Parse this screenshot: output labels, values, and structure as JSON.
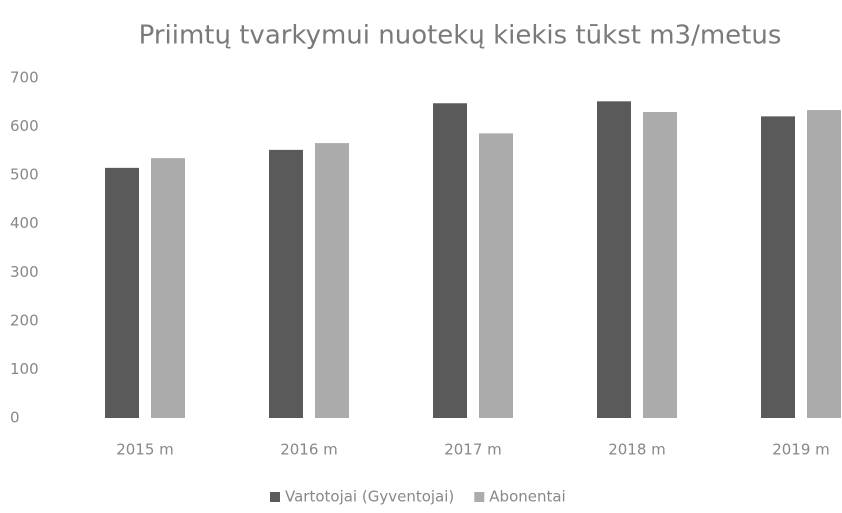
{
  "chart_data": {
    "type": "bar",
    "title": "Priimtų tvarkymui nuotekų kiekis tūkst m3/metus",
    "categories": [
      "2015 m",
      "2016 m",
      "2017 m",
      "2018 m",
      "2019 m"
    ],
    "series": [
      {
        "name": "Vartotojai (Gyventojai)",
        "color": "#5a5a5a",
        "values": [
          515,
          552,
          648,
          652,
          621
        ]
      },
      {
        "name": "Abonentai",
        "color": "#ababab",
        "values": [
          535,
          566,
          586,
          630,
          634
        ]
      }
    ],
    "ylim": [
      0,
      700
    ],
    "yticks": [
      0,
      100,
      200,
      300,
      400,
      500,
      600,
      700
    ],
    "grid": false,
    "legend": "bottom"
  }
}
